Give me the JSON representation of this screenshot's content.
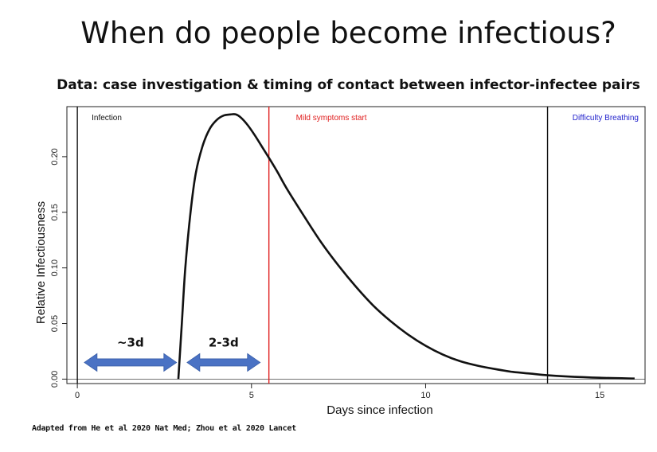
{
  "slide": {
    "title": "When do people become infectious?",
    "subtitle": "Data: case investigation & timing of contact between infector-infectee pairs",
    "credit": "Adapted from He et al 2020 Nat Med; Zhou et al 2020 Lancet"
  },
  "chart_data": {
    "type": "line",
    "title": "",
    "xlabel": "Days since infection",
    "ylabel": "Relative Infectiousness",
    "xlim": [
      -0.3,
      16.3
    ],
    "ylim": [
      -0.004,
      0.245
    ],
    "xticks": [
      0,
      5,
      10,
      15
    ],
    "yticks": [
      0.0,
      0.05,
      0.1,
      0.15,
      0.2
    ],
    "ytick_labels": [
      "0.00",
      "0.05",
      "0.10",
      "0.15",
      "0.20"
    ],
    "grid": false,
    "series": [
      {
        "color": "#111111",
        "x": [
          2.9,
          3.0,
          3.1,
          3.25,
          3.4,
          3.6,
          3.8,
          4.0,
          4.2,
          4.4,
          4.55,
          4.7,
          4.9,
          5.1,
          5.3,
          5.5,
          5.75,
          6.0,
          6.5,
          7.0,
          7.5,
          8.0,
          8.5,
          9.0,
          9.5,
          10.0,
          10.5,
          11.0,
          11.5,
          12.0,
          12.5,
          13.0,
          13.5,
          14.0,
          15.0,
          16.0
        ],
        "y": [
          0.0,
          0.05,
          0.1,
          0.15,
          0.185,
          0.21,
          0.225,
          0.233,
          0.237,
          0.238,
          0.238,
          0.235,
          0.228,
          0.219,
          0.209,
          0.199,
          0.186,
          0.172,
          0.147,
          0.123,
          0.102,
          0.083,
          0.066,
          0.052,
          0.04,
          0.03,
          0.022,
          0.016,
          0.012,
          0.009,
          0.0065,
          0.005,
          0.0035,
          0.0025,
          0.0012,
          0.0005
        ]
      }
    ],
    "vlines": [
      {
        "x": 0,
        "label": "Infection",
        "color": "#111111",
        "label_color": "#111111",
        "label_side": "right"
      },
      {
        "x": 5.5,
        "label": "Mild symptoms start",
        "color": "#e02020",
        "label_color": "#e02020",
        "label_side": "right"
      },
      {
        "x": 13.5,
        "label": "Difficulty Breathing",
        "color": "#111111",
        "label_color": "#2222cc",
        "label_side": "right"
      }
    ],
    "arrows": [
      {
        "x_start": 0.2,
        "x_end": 2.85,
        "y": 0.015,
        "label": "~3d",
        "color": "#4a72c4"
      },
      {
        "x_start": 3.15,
        "x_end": 5.25,
        "y": 0.015,
        "label": "2-3d",
        "color": "#4a72c4"
      }
    ]
  }
}
